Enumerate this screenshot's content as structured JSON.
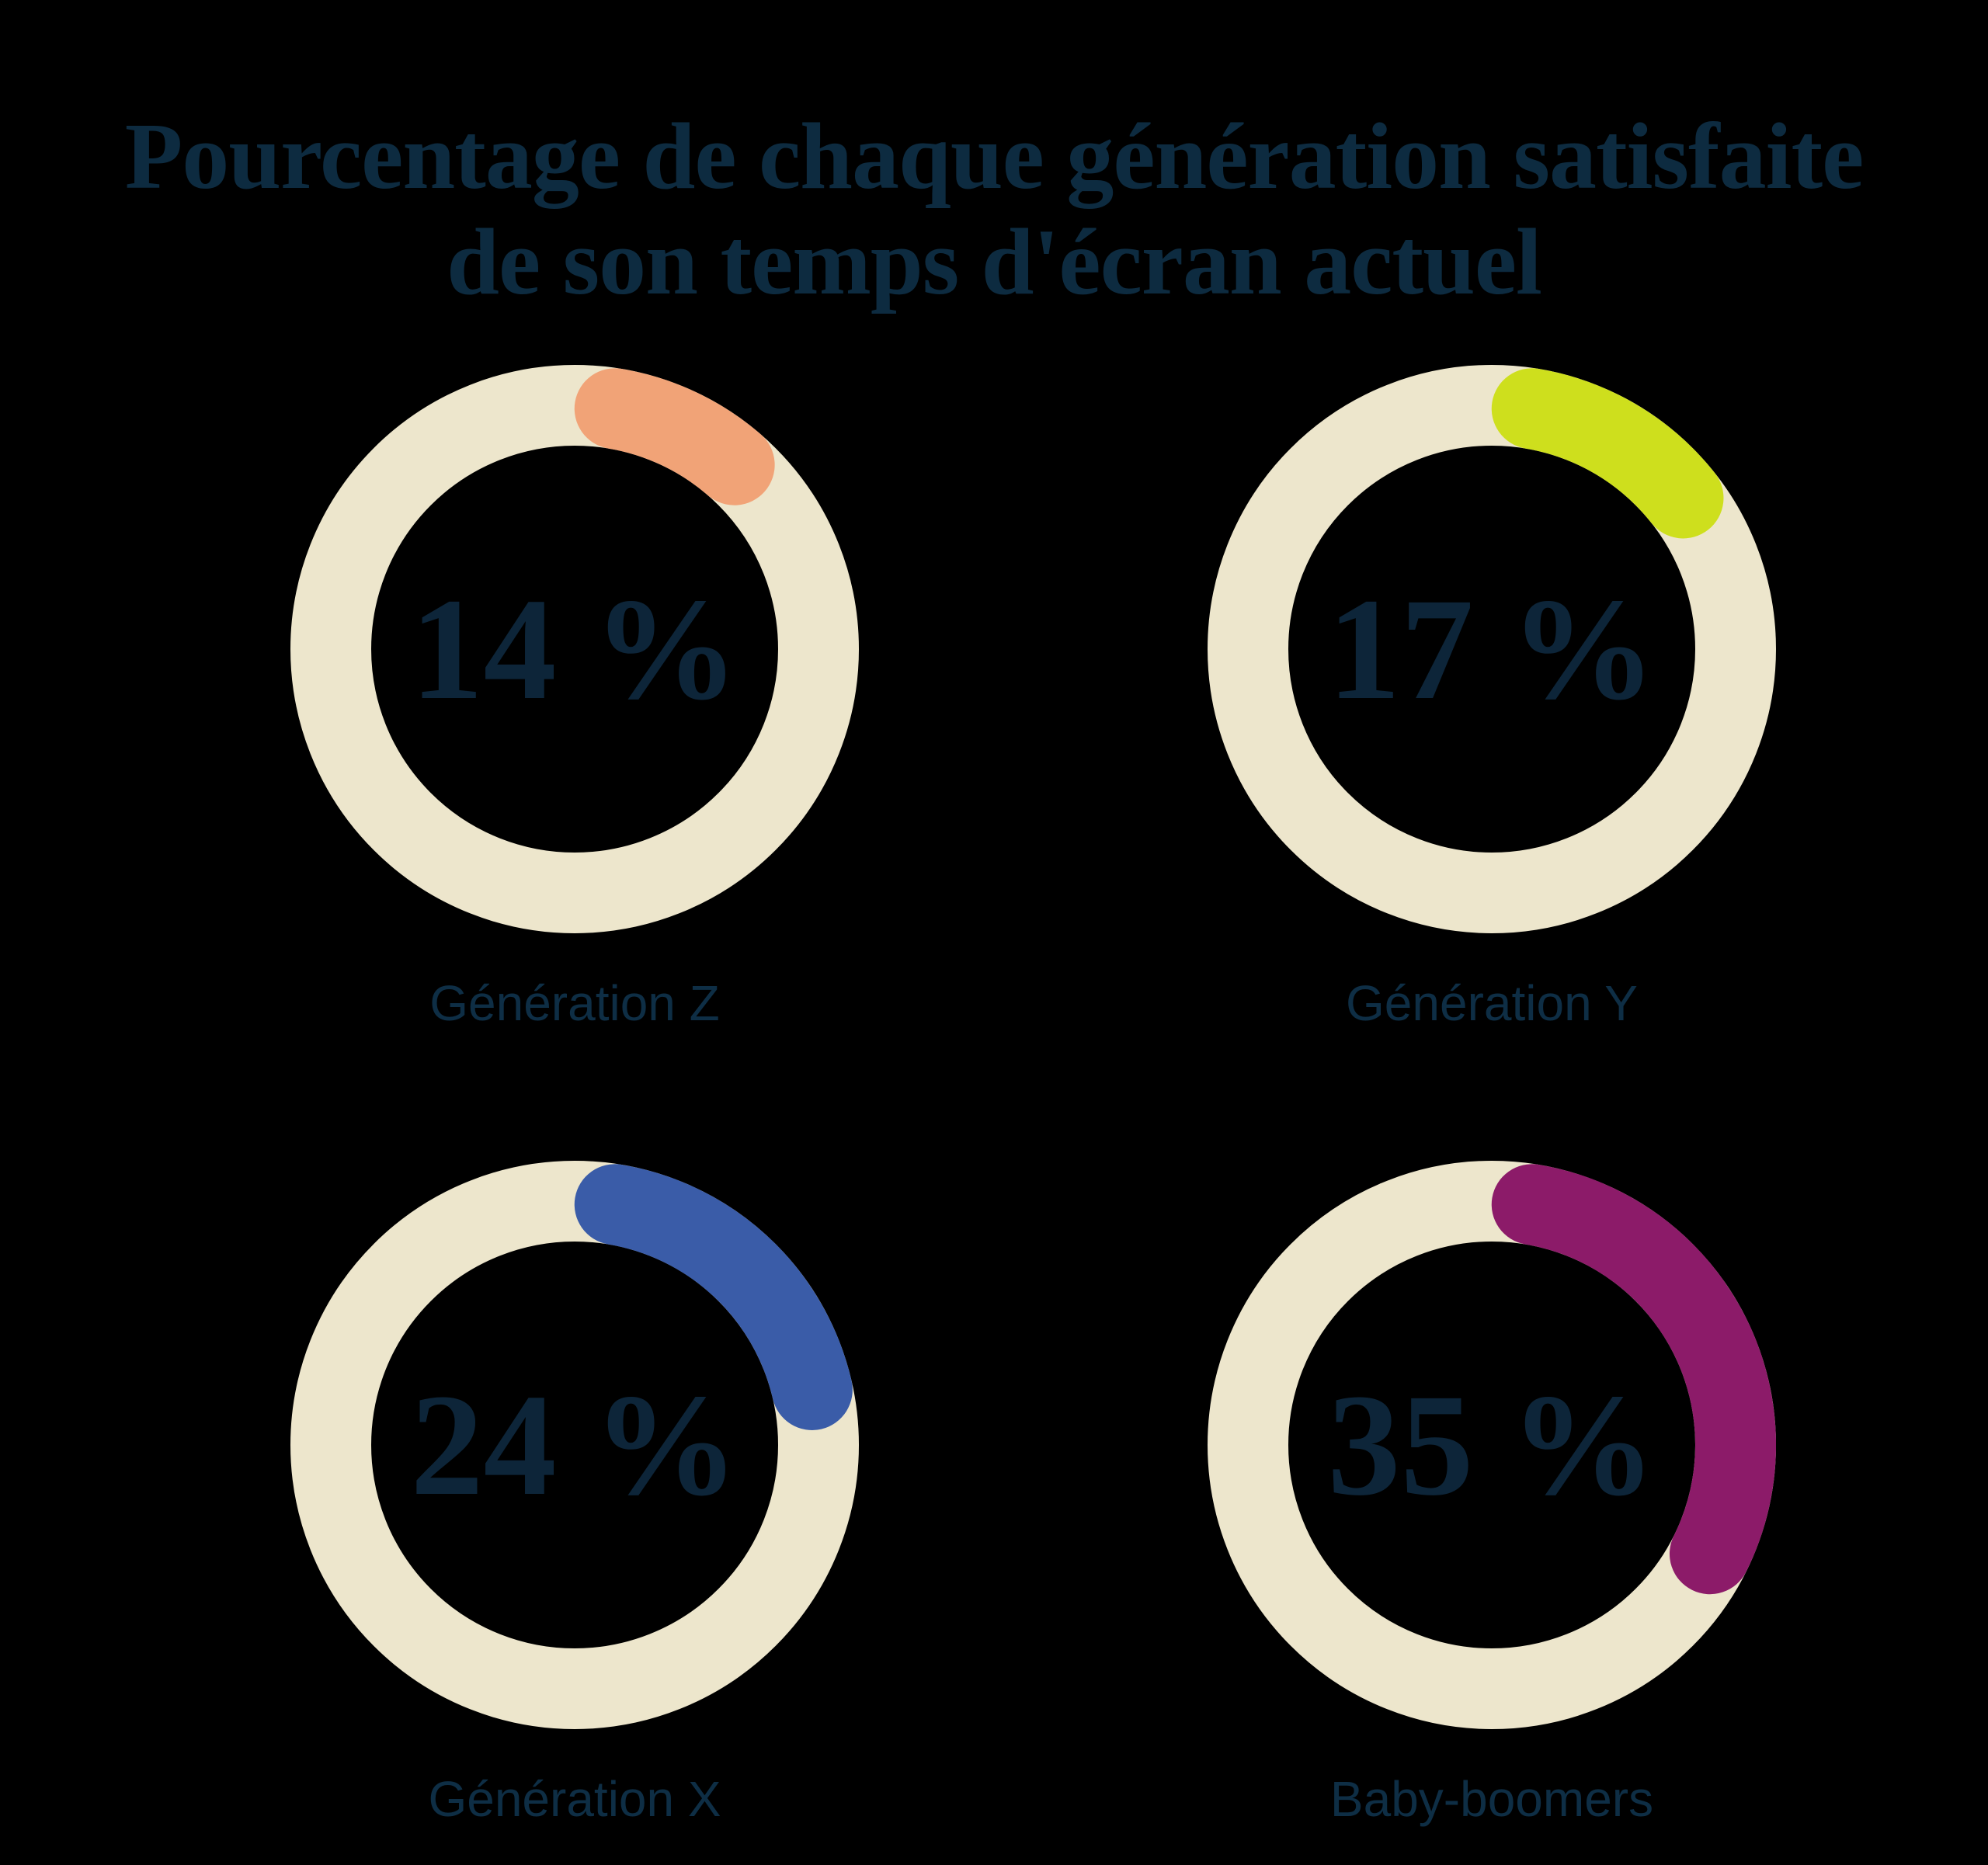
{
  "page": {
    "background_color": "#000000"
  },
  "title": {
    "line1": "Pourcentage de chaque génération satisfaite",
    "line2": "de son temps d'écran actuel",
    "color": "#0D2B40"
  },
  "chart_data": {
    "type": "pie",
    "subtype": "donut-grid",
    "title": "Pourcentage de chaque génération satisfaite de son temps d'écran actuel",
    "unit": "%",
    "start_angle_deg": 0,
    "direction": "clockwise",
    "track_color": "#EDE6CC",
    "value_color": "#0D2539",
    "label_color": "#0E2E45",
    "items": [
      {
        "label": "Génération Z",
        "value": 14,
        "display": "14 %",
        "arc_color": "#F1A377"
      },
      {
        "label": "Génération Y",
        "value": 17,
        "display": "17 %",
        "arc_color": "#CEDF1D"
      },
      {
        "label": "Génération X",
        "value": 24,
        "display": "24 %",
        "arc_color": "#3A5CA8"
      },
      {
        "label": "Baby-boomers",
        "value": 35,
        "display": "35 %",
        "arc_color": "#8C1B69"
      }
    ]
  }
}
